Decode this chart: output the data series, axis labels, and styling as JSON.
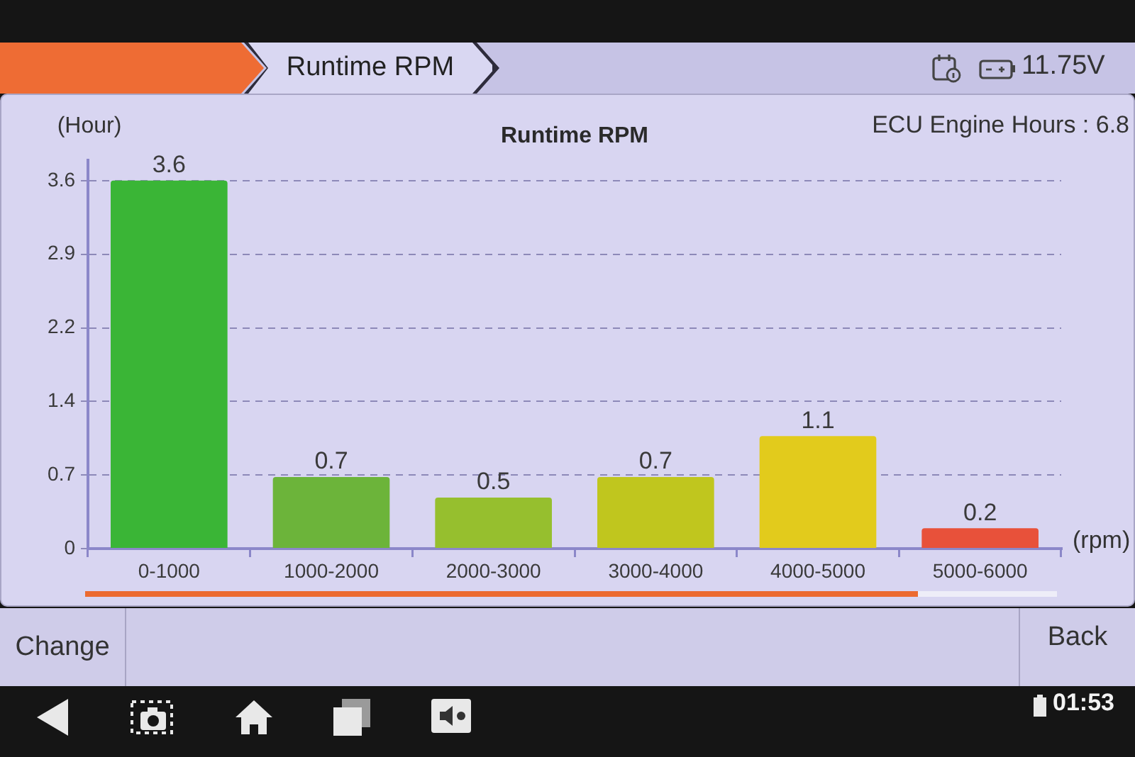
{
  "chart_data": {
    "type": "bar",
    "title": "Runtime RPM",
    "xlabel": "(rpm)",
    "ylabel": "(Hour)",
    "annotations": [
      "ECU Engine Hours : 6.8",
      "Runtime RPM",
      "11.75V",
      "Change",
      "Back",
      "01:53"
    ],
    "categories": [
      "0-1000",
      "1000-2000",
      "2000-3000",
      "3000-4000",
      "4000-5000",
      "5000-6000"
    ],
    "values": [
      3.6,
      0.7,
      0.5,
      0.7,
      1.1,
      0.2
    ],
    "colors": [
      "#3ab536",
      "#6cb43a",
      "#96bf2e",
      "#c0c61e",
      "#e2cb1c",
      "#e8513a"
    ],
    "ylim": [
      0,
      3.8
    ],
    "yticks": [
      0,
      {
        "value": 0.72,
        "label": "0.7"
      },
      {
        "value": 1.44,
        "label": "1.4"
      },
      {
        "value": 2.16,
        "label": "2.2"
      },
      {
        "value": 2.88,
        "label": "2.9"
      },
      3.6
    ],
    "grid": "y",
    "data_labels": true
  }
}
